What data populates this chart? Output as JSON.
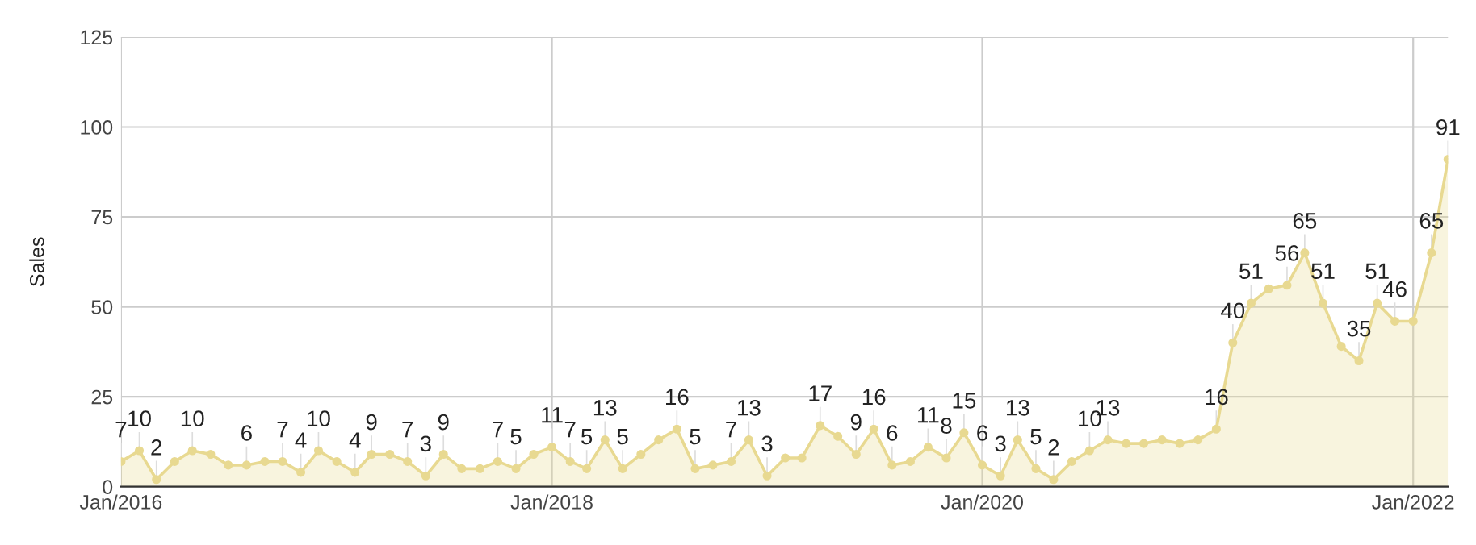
{
  "chart_data": {
    "type": "area",
    "ylabel": "Sales",
    "x": [
      "2016-01",
      "2016-02",
      "2016-03",
      "2016-04",
      "2016-05",
      "2016-06",
      "2016-07",
      "2016-08",
      "2016-09",
      "2016-10",
      "2016-11",
      "2016-12",
      "2017-01",
      "2017-02",
      "2017-03",
      "2017-04",
      "2017-05",
      "2017-06",
      "2017-07",
      "2017-08",
      "2017-09",
      "2017-10",
      "2017-11",
      "2017-12",
      "2018-01",
      "2018-02",
      "2018-03",
      "2018-04",
      "2018-05",
      "2018-06",
      "2018-07",
      "2018-08",
      "2018-09",
      "2018-10",
      "2018-11",
      "2018-12",
      "2019-01",
      "2019-02",
      "2019-03",
      "2019-04",
      "2019-05",
      "2019-06",
      "2019-07",
      "2019-08",
      "2019-09",
      "2019-10",
      "2019-11",
      "2019-12",
      "2020-01",
      "2020-02",
      "2020-03",
      "2020-04",
      "2020-05",
      "2020-06",
      "2020-07",
      "2020-08",
      "2020-09",
      "2020-10",
      "2020-11",
      "2020-12",
      "2021-01",
      "2021-02",
      "2021-03",
      "2021-04",
      "2021-05",
      "2021-06",
      "2021-07",
      "2021-08",
      "2021-09",
      "2021-10",
      "2021-11",
      "2021-12",
      "2022-01",
      "2022-02",
      "2022-03"
    ],
    "series": [
      {
        "color": "#e8d991",
        "values": [
          7,
          10,
          2,
          7,
          10,
          9,
          6,
          6,
          7,
          7,
          4,
          10,
          7,
          4,
          9,
          9,
          7,
          3,
          9,
          5,
          5,
          7,
          5,
          9,
          11,
          7,
          5,
          13,
          5,
          9,
          13,
          16,
          5,
          6,
          7,
          13,
          3,
          8,
          8,
          17,
          14,
          9,
          16,
          6,
          7,
          11,
          8,
          15,
          6,
          3,
          13,
          5,
          2,
          7,
          10,
          13,
          12,
          12,
          13,
          12,
          13,
          16,
          40,
          51,
          55,
          56,
          65,
          51,
          39,
          35,
          51,
          46,
          46,
          65,
          91
        ],
        "value_labels": [
          "7",
          "10",
          "2",
          null,
          "10",
          null,
          null,
          "6",
          null,
          "7",
          "4",
          "10",
          null,
          "4",
          "9",
          null,
          "7",
          "3",
          "9",
          null,
          null,
          "7",
          "5",
          null,
          "11",
          "7",
          "5",
          "13",
          "5",
          null,
          null,
          "16",
          "5",
          null,
          "7",
          "13",
          "3",
          null,
          null,
          "17",
          null,
          "9",
          "16",
          "6",
          null,
          "11",
          "8",
          "15",
          "6",
          "3",
          "13",
          "5",
          "2",
          null,
          "10",
          "13",
          null,
          null,
          null,
          null,
          null,
          "16",
          "40",
          "51",
          null,
          "56",
          "65",
          "51",
          null,
          "35",
          "51",
          "46",
          null,
          "65",
          "91"
        ]
      }
    ],
    "xlim": [
      "2016-01",
      "2022-03"
    ],
    "xticks": [
      {
        "value": "2016-01",
        "label": "Jan/2016"
      },
      {
        "value": "2018-01",
        "label": "Jan/2018"
      },
      {
        "value": "2020-01",
        "label": "Jan/2020"
      },
      {
        "value": "2022-01",
        "label": "Jan/2022"
      }
    ],
    "ylim": [
      0,
      125
    ],
    "yticks": [
      0,
      25,
      50,
      75,
      100,
      125
    ],
    "grid": true,
    "marker": "circle",
    "line_style": "solid"
  }
}
